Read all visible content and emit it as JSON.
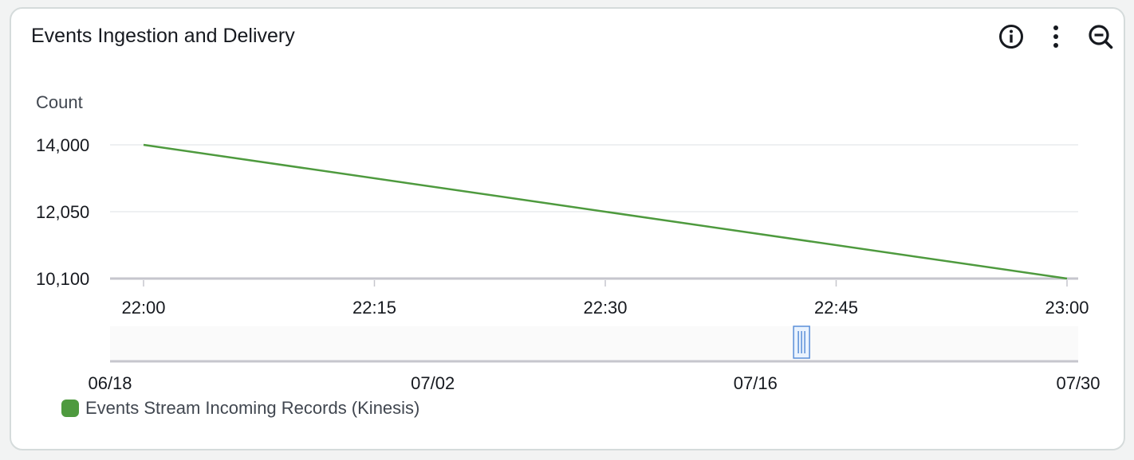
{
  "widget": {
    "title": "Events Ingestion and Delivery"
  },
  "actions": [
    {
      "name": "info-icon"
    },
    {
      "name": "more-options-icon"
    },
    {
      "name": "zoom-out-icon"
    }
  ],
  "chart_data": {
    "type": "line",
    "title": "Events Ingestion and Delivery",
    "ylabel": "Count",
    "xlabel": "",
    "yticks": [
      {
        "value": 14000,
        "label": "14,000"
      },
      {
        "value": 12050,
        "label": "12,050"
      },
      {
        "value": 10100,
        "label": "10,100"
      }
    ],
    "ylim": [
      10100,
      14000
    ],
    "xticks": [
      "22:00",
      "22:15",
      "22:30",
      "22:45",
      "23:00"
    ],
    "xlim": [
      "22:00",
      "23:00"
    ],
    "series": [
      {
        "name": "Events Stream Incoming Records (Kinesis)",
        "color": "#4e9a3e",
        "points": [
          {
            "x": "22:00",
            "y": 14000
          },
          {
            "x": "23:00",
            "y": 10100
          }
        ]
      }
    ],
    "navigator": {
      "ticks": [
        "06/18",
        "07/02",
        "07/16",
        "07/30"
      ],
      "range": [
        "06/18",
        "07/30"
      ],
      "selection": [
        "07/18",
        "07/18"
      ]
    },
    "grid": true,
    "legend_position": "bottom-left"
  }
}
